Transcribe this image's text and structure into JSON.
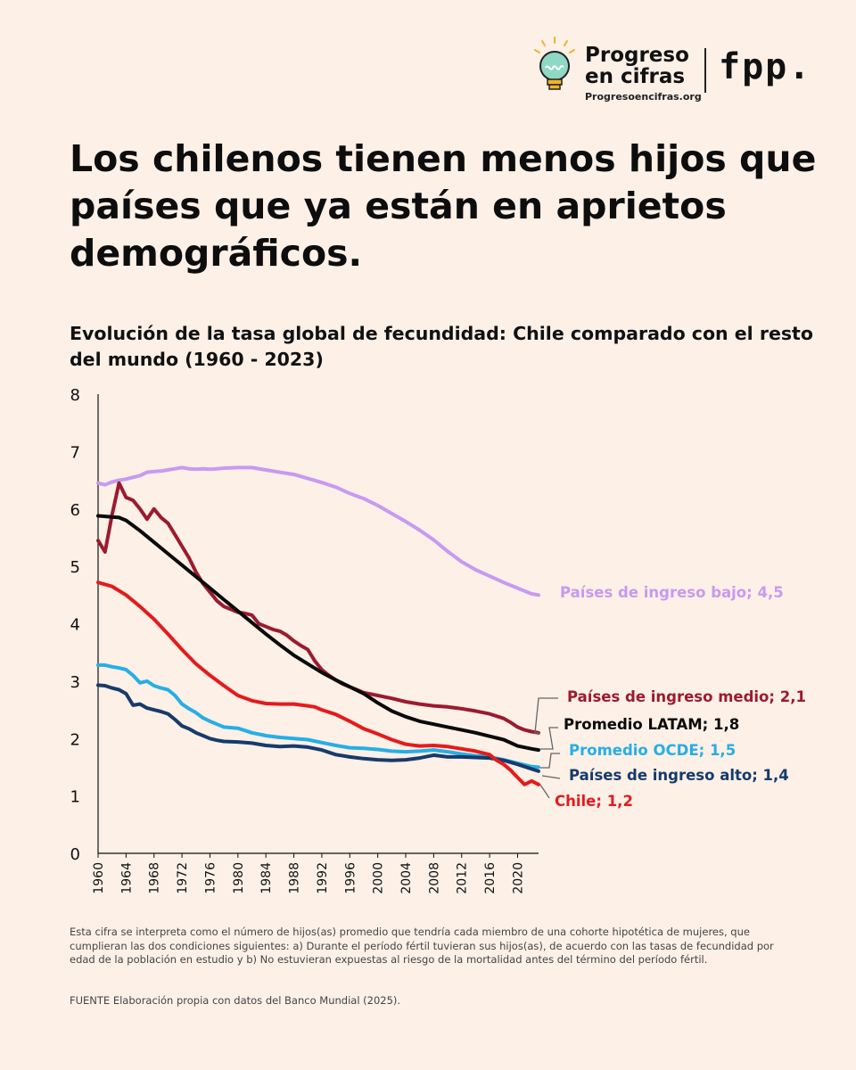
{
  "brand": {
    "name_line1": "Progreso",
    "name_line2": "en cifras",
    "url": "Progresoencifras.org",
    "partner": "fpp."
  },
  "headline": "Los chilenos tienen menos hijos que países que ya están en aprietos demográficos.",
  "subtitle": "Evolución de la tasa global de fecundidad: Chile comparado con el resto del mundo (1960 - 2023)",
  "footnote": "Esta cifra se interpreta como el número de hijos(as) promedio que tendría cada miembro de una cohorte hipotética de mujeres, que cumplieran las dos condiciones siguientes: a) Durante el período fértil tuvieran sus hijos(as), de acuerdo con las tasas de fecundidad por edad de la población en estudio y b) No estuvieran expuestas al riesgo de la mortalidad antes del término del período fértil.",
  "source": "FUENTE Elaboración propia con datos del Banco Mundial (2025).",
  "chart_data": {
    "type": "line",
    "title": "",
    "xlabel": "",
    "ylabel": "",
    "xlim": [
      1960,
      2023
    ],
    "ylim": [
      0,
      8
    ],
    "x_ticks": [
      1960,
      1964,
      1968,
      1972,
      1976,
      1980,
      1984,
      1988,
      1992,
      1996,
      2000,
      2004,
      2008,
      2012,
      2016,
      2020
    ],
    "y_ticks": [
      0,
      1,
      2,
      3,
      4,
      5,
      6,
      7,
      8
    ],
    "grid": false,
    "legend": "direct-labels-right",
    "series": [
      {
        "key": "bajo",
        "label": "Países de ingreso bajo; 4,5",
        "color": "#c89af0",
        "points": [
          [
            1960,
            6.45
          ],
          [
            1961,
            6.42
          ],
          [
            1962,
            6.47
          ],
          [
            1963,
            6.5
          ],
          [
            1964,
            6.52
          ],
          [
            1965,
            6.55
          ],
          [
            1966,
            6.58
          ],
          [
            1967,
            6.64
          ],
          [
            1968,
            6.65
          ],
          [
            1969,
            6.66
          ],
          [
            1970,
            6.68
          ],
          [
            1971,
            6.7
          ],
          [
            1972,
            6.72
          ],
          [
            1973,
            6.7
          ],
          [
            1974,
            6.69
          ],
          [
            1975,
            6.7
          ],
          [
            1976,
            6.69
          ],
          [
            1977,
            6.7
          ],
          [
            1978,
            6.71
          ],
          [
            1980,
            6.72
          ],
          [
            1982,
            6.72
          ],
          [
            1984,
            6.68
          ],
          [
            1986,
            6.64
          ],
          [
            1988,
            6.6
          ],
          [
            1990,
            6.53
          ],
          [
            1992,
            6.46
          ],
          [
            1994,
            6.38
          ],
          [
            1996,
            6.27
          ],
          [
            1998,
            6.18
          ],
          [
            2000,
            6.06
          ],
          [
            2002,
            5.92
          ],
          [
            2004,
            5.78
          ],
          [
            2006,
            5.63
          ],
          [
            2008,
            5.46
          ],
          [
            2010,
            5.26
          ],
          [
            2012,
            5.08
          ],
          [
            2014,
            4.94
          ],
          [
            2016,
            4.83
          ],
          [
            2018,
            4.72
          ],
          [
            2020,
            4.62
          ],
          [
            2022,
            4.52
          ],
          [
            2023,
            4.5
          ]
        ]
      },
      {
        "key": "medio",
        "label": "Países de ingreso medio; 2,1",
        "color": "#9c1b2e",
        "points": [
          [
            1960,
            5.45
          ],
          [
            1961,
            5.25
          ],
          [
            1962,
            5.9
          ],
          [
            1963,
            6.45
          ],
          [
            1964,
            6.2
          ],
          [
            1965,
            6.15
          ],
          [
            1966,
            6.0
          ],
          [
            1967,
            5.82
          ],
          [
            1968,
            6.0
          ],
          [
            1969,
            5.85
          ],
          [
            1970,
            5.75
          ],
          [
            1971,
            5.55
          ],
          [
            1972,
            5.35
          ],
          [
            1973,
            5.15
          ],
          [
            1974,
            4.9
          ],
          [
            1975,
            4.7
          ],
          [
            1976,
            4.55
          ],
          [
            1977,
            4.4
          ],
          [
            1978,
            4.3
          ],
          [
            1979,
            4.25
          ],
          [
            1980,
            4.2
          ],
          [
            1981,
            4.18
          ],
          [
            1982,
            4.15
          ],
          [
            1983,
            4.0
          ],
          [
            1984,
            3.95
          ],
          [
            1985,
            3.9
          ],
          [
            1986,
            3.87
          ],
          [
            1987,
            3.8
          ],
          [
            1988,
            3.7
          ],
          [
            1989,
            3.62
          ],
          [
            1990,
            3.55
          ],
          [
            1991,
            3.35
          ],
          [
            1992,
            3.2
          ],
          [
            1993,
            3.1
          ],
          [
            1994,
            3.02
          ],
          [
            1995,
            2.95
          ],
          [
            1996,
            2.9
          ],
          [
            1997,
            2.85
          ],
          [
            1998,
            2.8
          ],
          [
            2000,
            2.75
          ],
          [
            2002,
            2.7
          ],
          [
            2004,
            2.64
          ],
          [
            2006,
            2.6
          ],
          [
            2008,
            2.57
          ],
          [
            2010,
            2.55
          ],
          [
            2012,
            2.52
          ],
          [
            2014,
            2.48
          ],
          [
            2016,
            2.43
          ],
          [
            2018,
            2.35
          ],
          [
            2019,
            2.28
          ],
          [
            2020,
            2.2
          ],
          [
            2021,
            2.15
          ],
          [
            2022,
            2.12
          ],
          [
            2023,
            2.1
          ]
        ]
      },
      {
        "key": "latam",
        "label": "Promedio LATAM; 1,8",
        "color": "#0a0a0a",
        "points": [
          [
            1960,
            5.88
          ],
          [
            1962,
            5.86
          ],
          [
            1963,
            5.85
          ],
          [
            1964,
            5.8
          ],
          [
            1966,
            5.62
          ],
          [
            1968,
            5.42
          ],
          [
            1970,
            5.22
          ],
          [
            1972,
            5.02
          ],
          [
            1974,
            4.82
          ],
          [
            1976,
            4.62
          ],
          [
            1978,
            4.42
          ],
          [
            1980,
            4.22
          ],
          [
            1982,
            4.02
          ],
          [
            1984,
            3.82
          ],
          [
            1986,
            3.63
          ],
          [
            1988,
            3.45
          ],
          [
            1990,
            3.3
          ],
          [
            1992,
            3.15
          ],
          [
            1994,
            3.02
          ],
          [
            1996,
            2.9
          ],
          [
            1998,
            2.78
          ],
          [
            2000,
            2.62
          ],
          [
            2002,
            2.48
          ],
          [
            2004,
            2.38
          ],
          [
            2006,
            2.3
          ],
          [
            2008,
            2.25
          ],
          [
            2010,
            2.2
          ],
          [
            2012,
            2.15
          ],
          [
            2014,
            2.1
          ],
          [
            2016,
            2.04
          ],
          [
            2018,
            1.98
          ],
          [
            2020,
            1.87
          ],
          [
            2022,
            1.82
          ],
          [
            2023,
            1.8
          ]
        ]
      },
      {
        "key": "ocde",
        "label": "Promedio OCDE; 1,5",
        "color": "#27aee6",
        "points": [
          [
            1960,
            3.28
          ],
          [
            1961,
            3.28
          ],
          [
            1962,
            3.25
          ],
          [
            1963,
            3.23
          ],
          [
            1964,
            3.2
          ],
          [
            1965,
            3.1
          ],
          [
            1966,
            2.97
          ],
          [
            1967,
            3.0
          ],
          [
            1968,
            2.92
          ],
          [
            1969,
            2.88
          ],
          [
            1970,
            2.85
          ],
          [
            1971,
            2.75
          ],
          [
            1972,
            2.6
          ],
          [
            1973,
            2.52
          ],
          [
            1974,
            2.45
          ],
          [
            1975,
            2.36
          ],
          [
            1976,
            2.3
          ],
          [
            1977,
            2.25
          ],
          [
            1978,
            2.2
          ],
          [
            1980,
            2.18
          ],
          [
            1982,
            2.1
          ],
          [
            1984,
            2.05
          ],
          [
            1986,
            2.02
          ],
          [
            1988,
            2.0
          ],
          [
            1990,
            1.98
          ],
          [
            1992,
            1.93
          ],
          [
            1994,
            1.88
          ],
          [
            1996,
            1.84
          ],
          [
            1998,
            1.83
          ],
          [
            2000,
            1.81
          ],
          [
            2002,
            1.78
          ],
          [
            2004,
            1.77
          ],
          [
            2006,
            1.78
          ],
          [
            2008,
            1.8
          ],
          [
            2010,
            1.77
          ],
          [
            2012,
            1.73
          ],
          [
            2014,
            1.7
          ],
          [
            2016,
            1.68
          ],
          [
            2018,
            1.63
          ],
          [
            2020,
            1.57
          ],
          [
            2022,
            1.51
          ],
          [
            2023,
            1.5
          ]
        ]
      },
      {
        "key": "alto",
        "label": "Países de ingreso alto; 1,4",
        "color": "#173a6b",
        "points": [
          [
            1960,
            2.93
          ],
          [
            1961,
            2.92
          ],
          [
            1962,
            2.88
          ],
          [
            1963,
            2.85
          ],
          [
            1964,
            2.78
          ],
          [
            1965,
            2.58
          ],
          [
            1966,
            2.6
          ],
          [
            1967,
            2.53
          ],
          [
            1968,
            2.5
          ],
          [
            1969,
            2.47
          ],
          [
            1970,
            2.43
          ],
          [
            1971,
            2.33
          ],
          [
            1972,
            2.22
          ],
          [
            1973,
            2.17
          ],
          [
            1974,
            2.1
          ],
          [
            1975,
            2.05
          ],
          [
            1976,
            2.0
          ],
          [
            1977,
            1.97
          ],
          [
            1978,
            1.95
          ],
          [
            1980,
            1.94
          ],
          [
            1982,
            1.92
          ],
          [
            1984,
            1.88
          ],
          [
            1986,
            1.86
          ],
          [
            1988,
            1.87
          ],
          [
            1990,
            1.85
          ],
          [
            1992,
            1.8
          ],
          [
            1994,
            1.72
          ],
          [
            1996,
            1.68
          ],
          [
            1998,
            1.65
          ],
          [
            2000,
            1.63
          ],
          [
            2002,
            1.62
          ],
          [
            2004,
            1.63
          ],
          [
            2006,
            1.66
          ],
          [
            2008,
            1.71
          ],
          [
            2010,
            1.68
          ],
          [
            2012,
            1.68
          ],
          [
            2014,
            1.67
          ],
          [
            2016,
            1.66
          ],
          [
            2018,
            1.62
          ],
          [
            2020,
            1.55
          ],
          [
            2022,
            1.47
          ],
          [
            2023,
            1.43
          ]
        ]
      },
      {
        "key": "chile",
        "label": "Chile; 1,2",
        "color": "#e41b1b",
        "points": [
          [
            1960,
            4.72
          ],
          [
            1962,
            4.65
          ],
          [
            1964,
            4.5
          ],
          [
            1966,
            4.3
          ],
          [
            1968,
            4.08
          ],
          [
            1970,
            3.82
          ],
          [
            1972,
            3.55
          ],
          [
            1974,
            3.3
          ],
          [
            1976,
            3.1
          ],
          [
            1978,
            2.92
          ],
          [
            1980,
            2.75
          ],
          [
            1982,
            2.66
          ],
          [
            1984,
            2.61
          ],
          [
            1986,
            2.6
          ],
          [
            1988,
            2.6
          ],
          [
            1990,
            2.57
          ],
          [
            1991,
            2.55
          ],
          [
            1992,
            2.5
          ],
          [
            1994,
            2.42
          ],
          [
            1996,
            2.3
          ],
          [
            1998,
            2.17
          ],
          [
            2000,
            2.08
          ],
          [
            2002,
            1.98
          ],
          [
            2004,
            1.9
          ],
          [
            2006,
            1.87
          ],
          [
            2008,
            1.88
          ],
          [
            2010,
            1.86
          ],
          [
            2012,
            1.82
          ],
          [
            2014,
            1.78
          ],
          [
            2016,
            1.72
          ],
          [
            2017,
            1.62
          ],
          [
            2018,
            1.55
          ],
          [
            2019,
            1.45
          ],
          [
            2020,
            1.32
          ],
          [
            2021,
            1.2
          ],
          [
            2022,
            1.26
          ],
          [
            2023,
            1.2
          ]
        ]
      }
    ]
  }
}
